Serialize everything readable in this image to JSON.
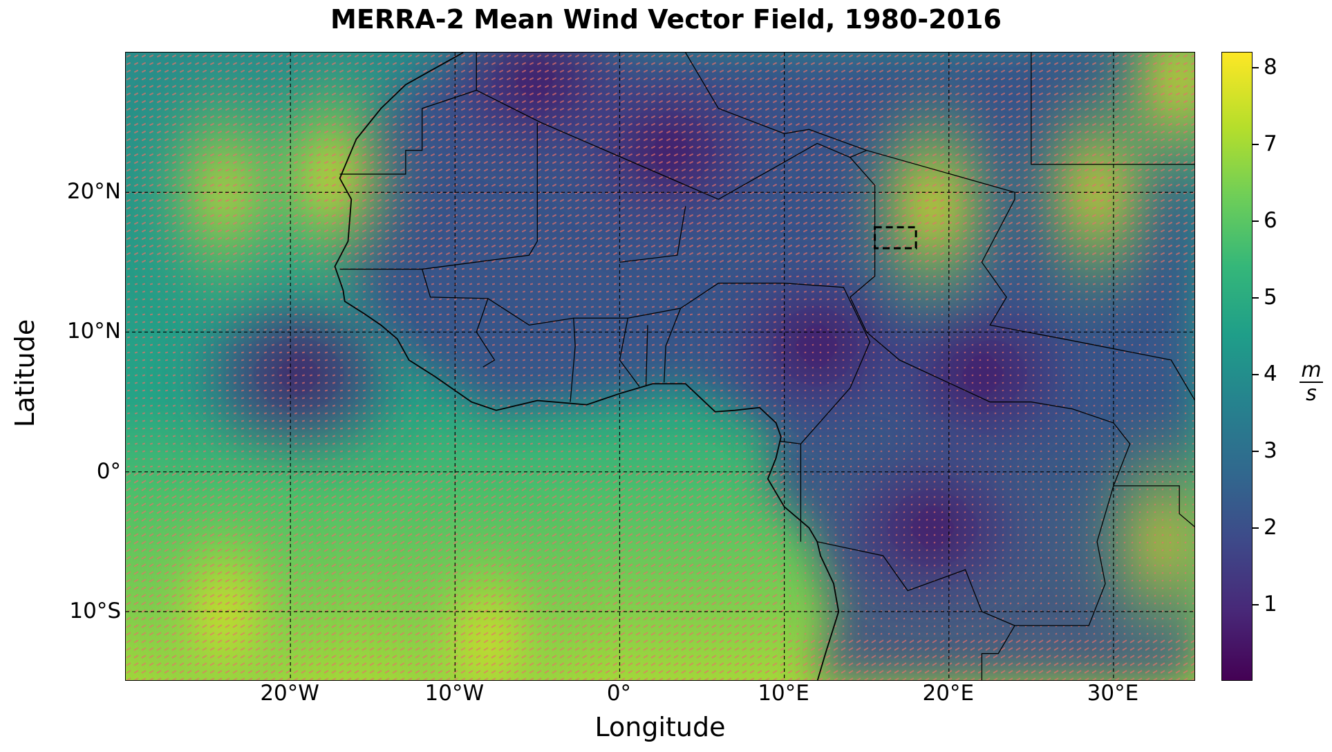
{
  "title": "MERRA-2 Mean Wind Vector Field, 1980-2016",
  "xaxis": {
    "label": "Longitude",
    "range": [
      -30,
      35
    ],
    "ticks": [
      {
        "v": -20,
        "t": "20°W"
      },
      {
        "v": -10,
        "t": "10°W"
      },
      {
        "v": 0,
        "t": "0°"
      },
      {
        "v": 10,
        "t": "10°E"
      },
      {
        "v": 20,
        "t": "20°E"
      },
      {
        "v": 30,
        "t": "30°E"
      }
    ]
  },
  "yaxis": {
    "label": "Latitude",
    "range": [
      -15,
      30
    ],
    "ticks": [
      {
        "v": 20,
        "t": "20°N"
      },
      {
        "v": 10,
        "t": "10°N"
      },
      {
        "v": 0,
        "t": "0°"
      },
      {
        "v": -10,
        "t": "10°S"
      }
    ]
  },
  "gridlines": "dashed",
  "colorbar": {
    "label_num": "m",
    "label_den": "s",
    "range": [
      0,
      8.2
    ],
    "colormap": "viridis",
    "ticks": [
      {
        "v": 1,
        "t": "1"
      },
      {
        "v": 2,
        "t": "2"
      },
      {
        "v": 3,
        "t": "3"
      },
      {
        "v": 4,
        "t": "4"
      },
      {
        "v": 5,
        "t": "5"
      },
      {
        "v": 6,
        "t": "6"
      },
      {
        "v": 7,
        "t": "7"
      },
      {
        "v": 8,
        "t": "8"
      }
    ]
  },
  "arrow_color": "#e8706a",
  "highlight_box": {
    "lon": [
      15.5,
      18
    ],
    "lat": [
      16,
      17.5
    ]
  },
  "wind_maxima": [
    {
      "lon": -17.5,
      "lat": 21,
      "speed": 8.0
    },
    {
      "lon": -24,
      "lat": 20,
      "speed": 7.0
    },
    {
      "lon": -24,
      "lat": -10,
      "speed": 8.0
    },
    {
      "lon": -8,
      "lat": -12,
      "speed": 7.5
    },
    {
      "lon": 19,
      "lat": 19,
      "speed": 8.0
    },
    {
      "lon": 29,
      "lat": 20,
      "speed": 7.5
    },
    {
      "lon": 34,
      "lat": 28,
      "speed": 8.0
    },
    {
      "lon": 33,
      "lat": -5,
      "speed": 6.5
    }
  ],
  "wind_minima": [
    {
      "lon": -19.5,
      "lat": 7,
      "speed": 0.8
    },
    {
      "lon": -5,
      "lat": 28,
      "speed": 0.6
    },
    {
      "lon": 19,
      "lat": -4,
      "speed": 0.4
    },
    {
      "lon": 22,
      "lat": 7,
      "speed": 0.6
    },
    {
      "lon": 3,
      "lat": 23,
      "speed": 1.0
    },
    {
      "lon": 12,
      "lat": 9,
      "speed": 0.8
    }
  ]
}
